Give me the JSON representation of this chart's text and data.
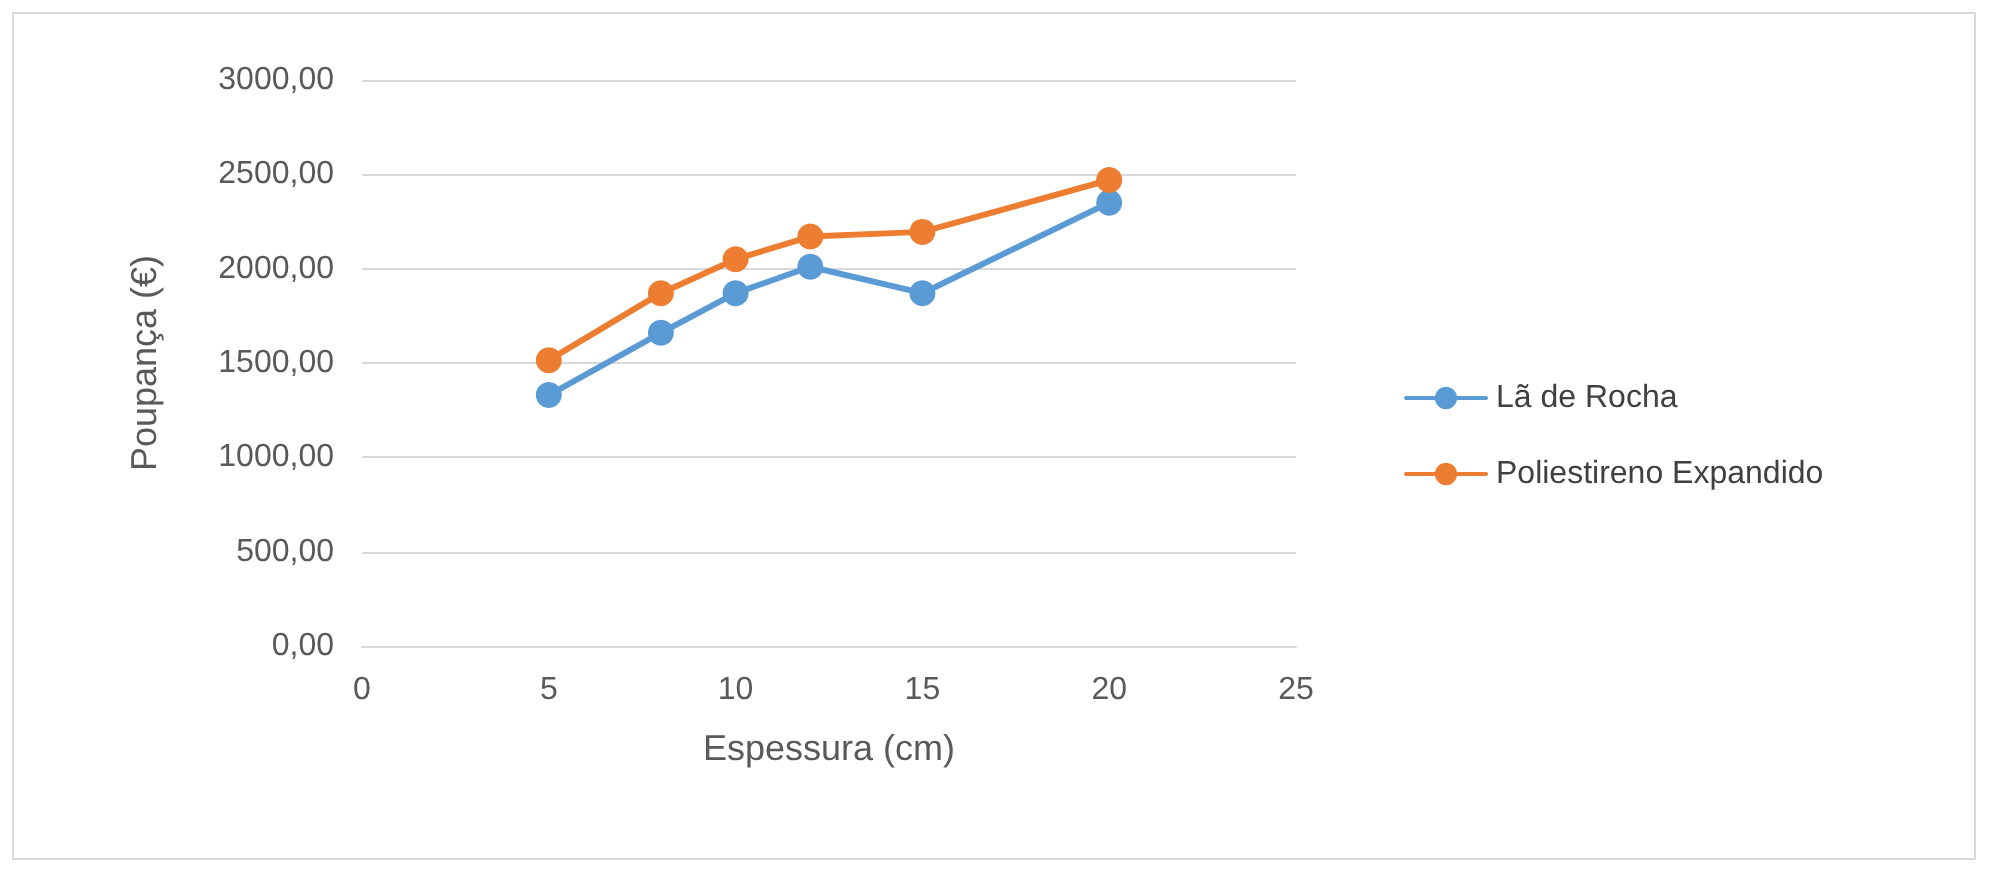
{
  "chart_data": {
    "type": "line",
    "xlabel": "Espessura (cm)",
    "ylabel": "Poupança (€)",
    "x": [
      5,
      8,
      10,
      12,
      15,
      20
    ],
    "series": [
      {
        "name": "Lã de Rocha",
        "color": "#5b9bd5",
        "values": [
          1330,
          1660,
          1870,
          2010,
          1870,
          2350
        ]
      },
      {
        "name": "Poliestireno Expandido",
        "color": "#ed7d31",
        "values": [
          1515,
          1870,
          2050,
          2170,
          2195,
          2470
        ]
      }
    ],
    "xlim": [
      0,
      25
    ],
    "xticks": [
      0,
      5,
      10,
      15,
      20,
      25
    ],
    "ylim": [
      0,
      3000
    ],
    "yticks": [
      {
        "value": 0,
        "label": "0,00"
      },
      {
        "value": 500,
        "label": "500,00"
      },
      {
        "value": 1000,
        "label": "1000,00"
      },
      {
        "value": 1500,
        "label": "1500,00"
      },
      {
        "value": 2000,
        "label": "2000,00"
      },
      {
        "value": 2500,
        "label": "2500,00"
      },
      {
        "value": 3000,
        "label": "3000,00"
      }
    ],
    "grid": "y",
    "legend": "right",
    "marker": "circle",
    "line_style": "solid"
  }
}
